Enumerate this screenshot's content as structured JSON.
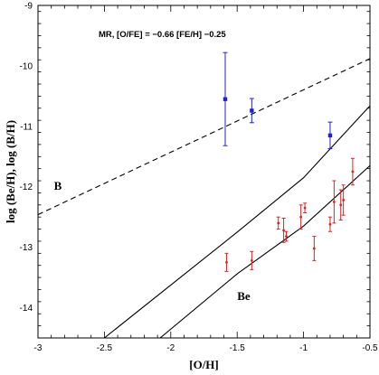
{
  "chart_data": {
    "type": "scatter",
    "title": "",
    "xlabel": "[O/H]",
    "ylabel": "log (Be/H),  log (B/H)",
    "xlim": [
      -3,
      -0.5
    ],
    "ylim": [
      -14.5,
      -9
    ],
    "x_ticks": [
      -3,
      -2.5,
      -2,
      -1.5,
      -1,
      -0.5
    ],
    "x_tick_labels": [
      "-3",
      "-2.5",
      "-2",
      "-1.5",
      "-1",
      "-0.5"
    ],
    "y_ticks": [
      -14,
      -13,
      -12,
      -11,
      -10,
      -9
    ],
    "y_tick_labels": [
      "-14",
      "-13",
      "-12",
      "-11",
      "-10",
      "-9"
    ],
    "grid": false,
    "annotation": "MR, [O/FE] = −0.66 [FE/H] −0.25",
    "series": [
      {
        "name": "",
        "color": "#2222cc",
        "marker": "square",
        "points": [
          {
            "x": -1.59,
            "y": -10.55,
            "err": 0.77
          },
          {
            "x": -1.39,
            "y": -10.74,
            "err": 0.2
          },
          {
            "x": -0.8,
            "y": -11.15,
            "err": 0.22
          }
        ]
      },
      {
        "name": "",
        "color": "#dd2222",
        "marker": "dot",
        "points": [
          {
            "x": -1.58,
            "y": -13.25,
            "err": 0.15
          },
          {
            "x": -1.39,
            "y": -13.22,
            "err": 0.15
          },
          {
            "x": -1.19,
            "y": -12.6,
            "err": 0.1
          },
          {
            "x": -1.15,
            "y": -12.72,
            "err": 0.2
          },
          {
            "x": -1.13,
            "y": -12.82,
            "err": 0.08
          },
          {
            "x": -1.02,
            "y": -12.5,
            "err": 0.2
          },
          {
            "x": -0.99,
            "y": -12.35,
            "err": 0.08
          },
          {
            "x": -0.92,
            "y": -13.02,
            "err": 0.2
          },
          {
            "x": -0.8,
            "y": -12.62,
            "err": 0.12
          },
          {
            "x": -0.77,
            "y": -12.25,
            "err": 0.35
          },
          {
            "x": -0.72,
            "y": -12.3,
            "err": 0.25
          },
          {
            "x": -0.7,
            "y": -12.22,
            "err": 0.25
          },
          {
            "x": -0.63,
            "y": -11.75,
            "err": 0.22
          }
        ]
      }
    ],
    "curves": [
      {
        "label": "B",
        "style": "dashed",
        "x": [
          -3,
          -0.5
        ],
        "y": [
          -12.46,
          -9.88
        ]
      },
      {
        "label": "",
        "style": "solid",
        "x": [
          -2.5,
          -1.5,
          -1.0,
          -0.5
        ],
        "y": [
          -14.5,
          -12.75,
          -11.85,
          -10.66
        ]
      },
      {
        "label": "Be",
        "style": "solid",
        "x": [
          -2.08,
          -1.5,
          -1.0,
          -0.5
        ],
        "y": [
          -14.5,
          -13.44,
          -12.65,
          -11.65
        ]
      }
    ],
    "curve_labels": [
      {
        "text": "B",
        "x": -2.88,
        "y": -12.05
      },
      {
        "text": "Be",
        "x": -1.5,
        "y": -13.87
      }
    ]
  }
}
